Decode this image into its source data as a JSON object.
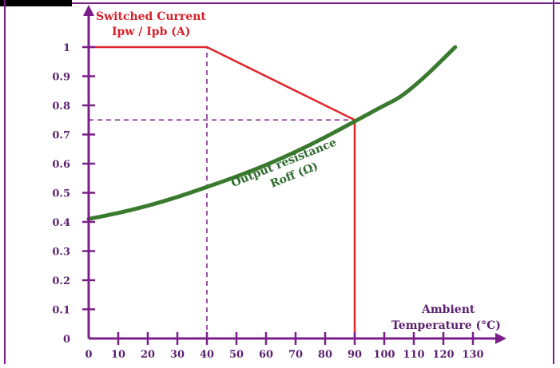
{
  "colors": {
    "axis": "#7a1f8a",
    "frame": "#7a1f8a",
    "switched_current": "#e0252c",
    "output_resistance": "#3a7a2e",
    "guides": "#7a1f8a",
    "x_title": "#5a1f6e",
    "y_title": "#d8202a",
    "curve_label": "#2e6b2e"
  },
  "chart_data": {
    "type": "line",
    "title": "",
    "ylabel_line1": "Switched Current",
    "ylabel_line2": "Ipw / Ipb (A)",
    "xlabel_line1": "Ambient",
    "xlabel_line2": "Temperature (°C)",
    "xlim": [
      0,
      140
    ],
    "ylim": [
      0,
      1.1
    ],
    "x_ticks": [
      "0",
      "10",
      "20",
      "30",
      "40",
      "50",
      "60",
      "70",
      "80",
      "90",
      "100",
      "110",
      "120",
      "130"
    ],
    "y_ticks": [
      "0",
      "0.1",
      "0.2",
      "0.3",
      "0.4",
      "0.5",
      "0.6",
      "0.7",
      "0.8",
      "0.9",
      "1"
    ],
    "series": [
      {
        "label_line1": "",
        "label_line2": "",
        "points": [
          [
            0,
            1.0
          ],
          [
            40,
            1.0
          ],
          [
            90,
            0.75
          ],
          [
            90,
            0.0
          ]
        ]
      },
      {
        "label_line1": "Output resistance",
        "label_line2": "Roff (Ω)",
        "points": [
          [
            0,
            0.41
          ],
          [
            10,
            0.43
          ],
          [
            20,
            0.455
          ],
          [
            30,
            0.485
          ],
          [
            40,
            0.52
          ],
          [
            50,
            0.555
          ],
          [
            60,
            0.595
          ],
          [
            70,
            0.64
          ],
          [
            80,
            0.69
          ],
          [
            90,
            0.745
          ],
          [
            100,
            0.8
          ],
          [
            105,
            0.825
          ],
          [
            110,
            0.865
          ],
          [
            115,
            0.91
          ],
          [
            120,
            0.96
          ],
          [
            124,
            1.0
          ]
        ]
      }
    ],
    "reference_lines": [
      {
        "x": 40,
        "y_from": 0,
        "y_to": 1.0
      },
      {
        "x": 90,
        "y_from": 0.75,
        "y_to": 0.75,
        "x_from": 0
      }
    ],
    "grid": false
  }
}
